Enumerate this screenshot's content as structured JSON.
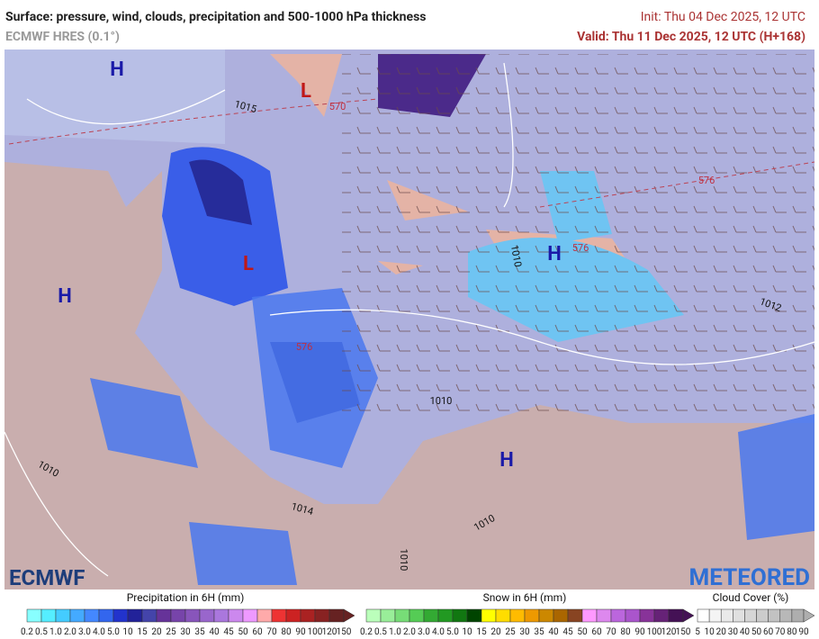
{
  "header": {
    "title": "Surface: pressure, wind, clouds, precipitation and 500-1000 hPa thickness",
    "model": "ECMWF HRES (0.1°)",
    "init": "Init: Thu 04 Dec 2025, 12 UTC",
    "valid": "Valid: Thu 11 Dec 2025, 12 UTC (H+168)"
  },
  "map": {
    "pressure_centers": [
      "H",
      "L",
      "H",
      "L",
      "H",
      "H"
    ],
    "isobar_labels": [
      "1015",
      "1010",
      "1010",
      "1012",
      "1010",
      "1014",
      "1010",
      "1010"
    ],
    "thickness_labels": [
      "570",
      "576",
      "576",
      "576"
    ],
    "logos": [
      "ECMWF",
      "METEORED"
    ]
  },
  "legends": [
    {
      "title": "Precipitation in 6H (mm)",
      "labels": [
        "0.2",
        "0.5",
        "1.0",
        "2.0",
        "3.0",
        "4.0",
        "5.0",
        "10",
        "15",
        "20",
        "25",
        "30",
        "35",
        "40",
        "45",
        "50",
        "60",
        "70",
        "80",
        "90",
        "100",
        "120",
        "150"
      ],
      "colors": [
        "#8ff",
        "#5ef",
        "#4cf",
        "#4af",
        "#48f",
        "#36e",
        "#23c",
        "#229",
        "#44a",
        "#639",
        "#74a",
        "#85b",
        "#96c",
        "#a7d",
        "#c8e",
        "#e9f",
        "#faa",
        "#e33",
        "#c22",
        "#a22",
        "#822",
        "#622"
      ]
    },
    {
      "title": "Snow in 6H (mm)",
      "labels": [
        "0.2",
        "0.5",
        "1.0",
        "2.0",
        "3.0",
        "4.0",
        "5.0",
        "10",
        "15",
        "20",
        "25",
        "30",
        "35",
        "40",
        "45",
        "50",
        "60",
        "70",
        "80",
        "90",
        "100",
        "120",
        "150"
      ],
      "colors": [
        "#bfb",
        "#9e9",
        "#7d7",
        "#5c5",
        "#3a3",
        "#292",
        "#171",
        "#040",
        "#ff0",
        "#fd0",
        "#fb0",
        "#e90",
        "#c80",
        "#a60",
        "#842",
        "#f9f",
        "#d8e",
        "#b6d",
        "#a5c",
        "#839",
        "#627",
        "#415"
      ]
    },
    {
      "title": "Cloud Cover (%)",
      "labels": [
        "5",
        "10",
        "20",
        "30",
        "40",
        "50",
        "60",
        "70",
        "80",
        "90"
      ],
      "colors": [
        "#fff",
        "#f4f4f4",
        "#eaeaea",
        "#e0e0e0",
        "#d6d6d6",
        "#ccc",
        "#c2c2c2",
        "#b8b8b8",
        "#aeaeae"
      ]
    }
  ]
}
